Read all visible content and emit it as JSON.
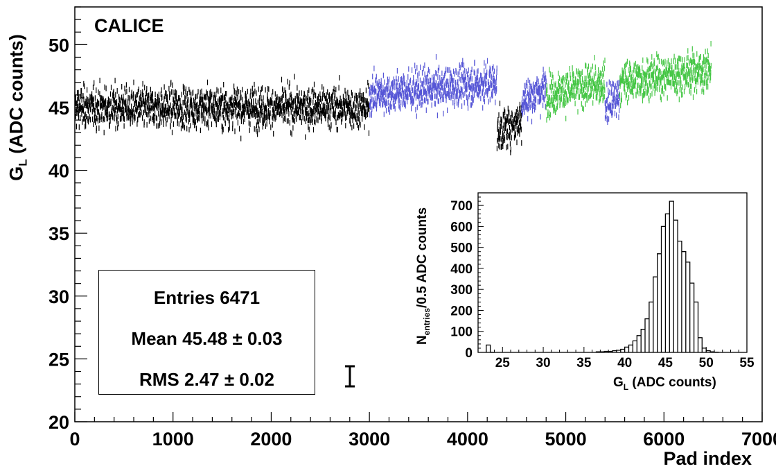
{
  "chart_data": [
    {
      "type": "scatter",
      "title": "",
      "xlabel": "Pad index",
      "ylabel_main": "G",
      "ylabel_sub": "L",
      "ylabel_rest": " (ADC counts)",
      "xlim": [
        0,
        7000
      ],
      "ylim": [
        20,
        53
      ],
      "xticks": [
        "0",
        "1000",
        "2000",
        "3000",
        "4000",
        "5000",
        "6000",
        "7000"
      ],
      "yticks": [
        "20",
        "25",
        "30",
        "35",
        "40",
        "45",
        "50"
      ],
      "grid": false,
      "annotation": "CALICE",
      "colors": {
        "black": "#000000",
        "blue": "#5656d6",
        "green": "#45c645"
      },
      "series": [
        {
          "color": "black",
          "x": [
            0,
            3000
          ],
          "y_level": [
            45,
            45
          ]
        },
        {
          "color": "blue",
          "x": [
            3000,
            4300
          ],
          "y_level": [
            46,
            47
          ]
        },
        {
          "color": "black",
          "x": [
            4300,
            4550
          ],
          "y_level": [
            43,
            44
          ]
        },
        {
          "color": "blue",
          "x": [
            4550,
            4800
          ],
          "y_level": [
            45.5,
            46.5
          ]
        },
        {
          "color": "green",
          "x": [
            4800,
            5400
          ],
          "y_level": [
            46,
            47
          ]
        },
        {
          "color": "blue",
          "x": [
            5400,
            5550
          ],
          "y_level": [
            45,
            46
          ]
        },
        {
          "color": "green",
          "x": [
            5550,
            6480
          ],
          "y_level": [
            47,
            48
          ]
        }
      ],
      "stats": {
        "entries_label": "Entries",
        "entries": "6471",
        "mean_label": "Mean",
        "mean": "45.48",
        "mean_err": "0.03",
        "rms_label": "RMS",
        "rms": "2.47",
        "rms_err": "0.02",
        "pm": "±"
      }
    },
    {
      "type": "bar",
      "title": "",
      "xlabel_main": "G",
      "xlabel_sub": "L",
      "xlabel_rest": " (ADC counts)",
      "ylabel_main": "N",
      "ylabel_sub": "entries",
      "ylabel_rest": "/0.5 ADC counts",
      "xlim": [
        22,
        55
      ],
      "ylim": [
        0,
        760
      ],
      "xticks": [
        "25",
        "30",
        "35",
        "40",
        "45",
        "50",
        "55"
      ],
      "yticks": [
        "0",
        "100",
        "200",
        "300",
        "400",
        "500",
        "600",
        "700"
      ],
      "bins": [
        {
          "x": 23.0,
          "n": 35
        },
        {
          "x": 23.5,
          "n": 0
        },
        {
          "x": 36.5,
          "n": 3
        },
        {
          "x": 37.0,
          "n": 3
        },
        {
          "x": 37.5,
          "n": 5
        },
        {
          "x": 38.0,
          "n": 5
        },
        {
          "x": 38.5,
          "n": 8
        },
        {
          "x": 39.0,
          "n": 10
        },
        {
          "x": 39.5,
          "n": 15
        },
        {
          "x": 40.0,
          "n": 25
        },
        {
          "x": 40.5,
          "n": 35
        },
        {
          "x": 41.0,
          "n": 55
        },
        {
          "x": 41.5,
          "n": 80
        },
        {
          "x": 42.0,
          "n": 110
        },
        {
          "x": 42.5,
          "n": 160
        },
        {
          "x": 43.0,
          "n": 240
        },
        {
          "x": 43.5,
          "n": 360
        },
        {
          "x": 44.0,
          "n": 470
        },
        {
          "x": 44.5,
          "n": 600
        },
        {
          "x": 45.0,
          "n": 660
        },
        {
          "x": 45.5,
          "n": 720
        },
        {
          "x": 46.0,
          "n": 630
        },
        {
          "x": 46.5,
          "n": 530
        },
        {
          "x": 47.0,
          "n": 480
        },
        {
          "x": 47.5,
          "n": 430
        },
        {
          "x": 48.0,
          "n": 330
        },
        {
          "x": 48.5,
          "n": 240
        },
        {
          "x": 49.0,
          "n": 70
        },
        {
          "x": 49.5,
          "n": 20
        },
        {
          "x": 50.0,
          "n": 8
        },
        {
          "x": 50.5,
          "n": 3
        },
        {
          "x": 51.0,
          "n": 1
        }
      ]
    }
  ]
}
